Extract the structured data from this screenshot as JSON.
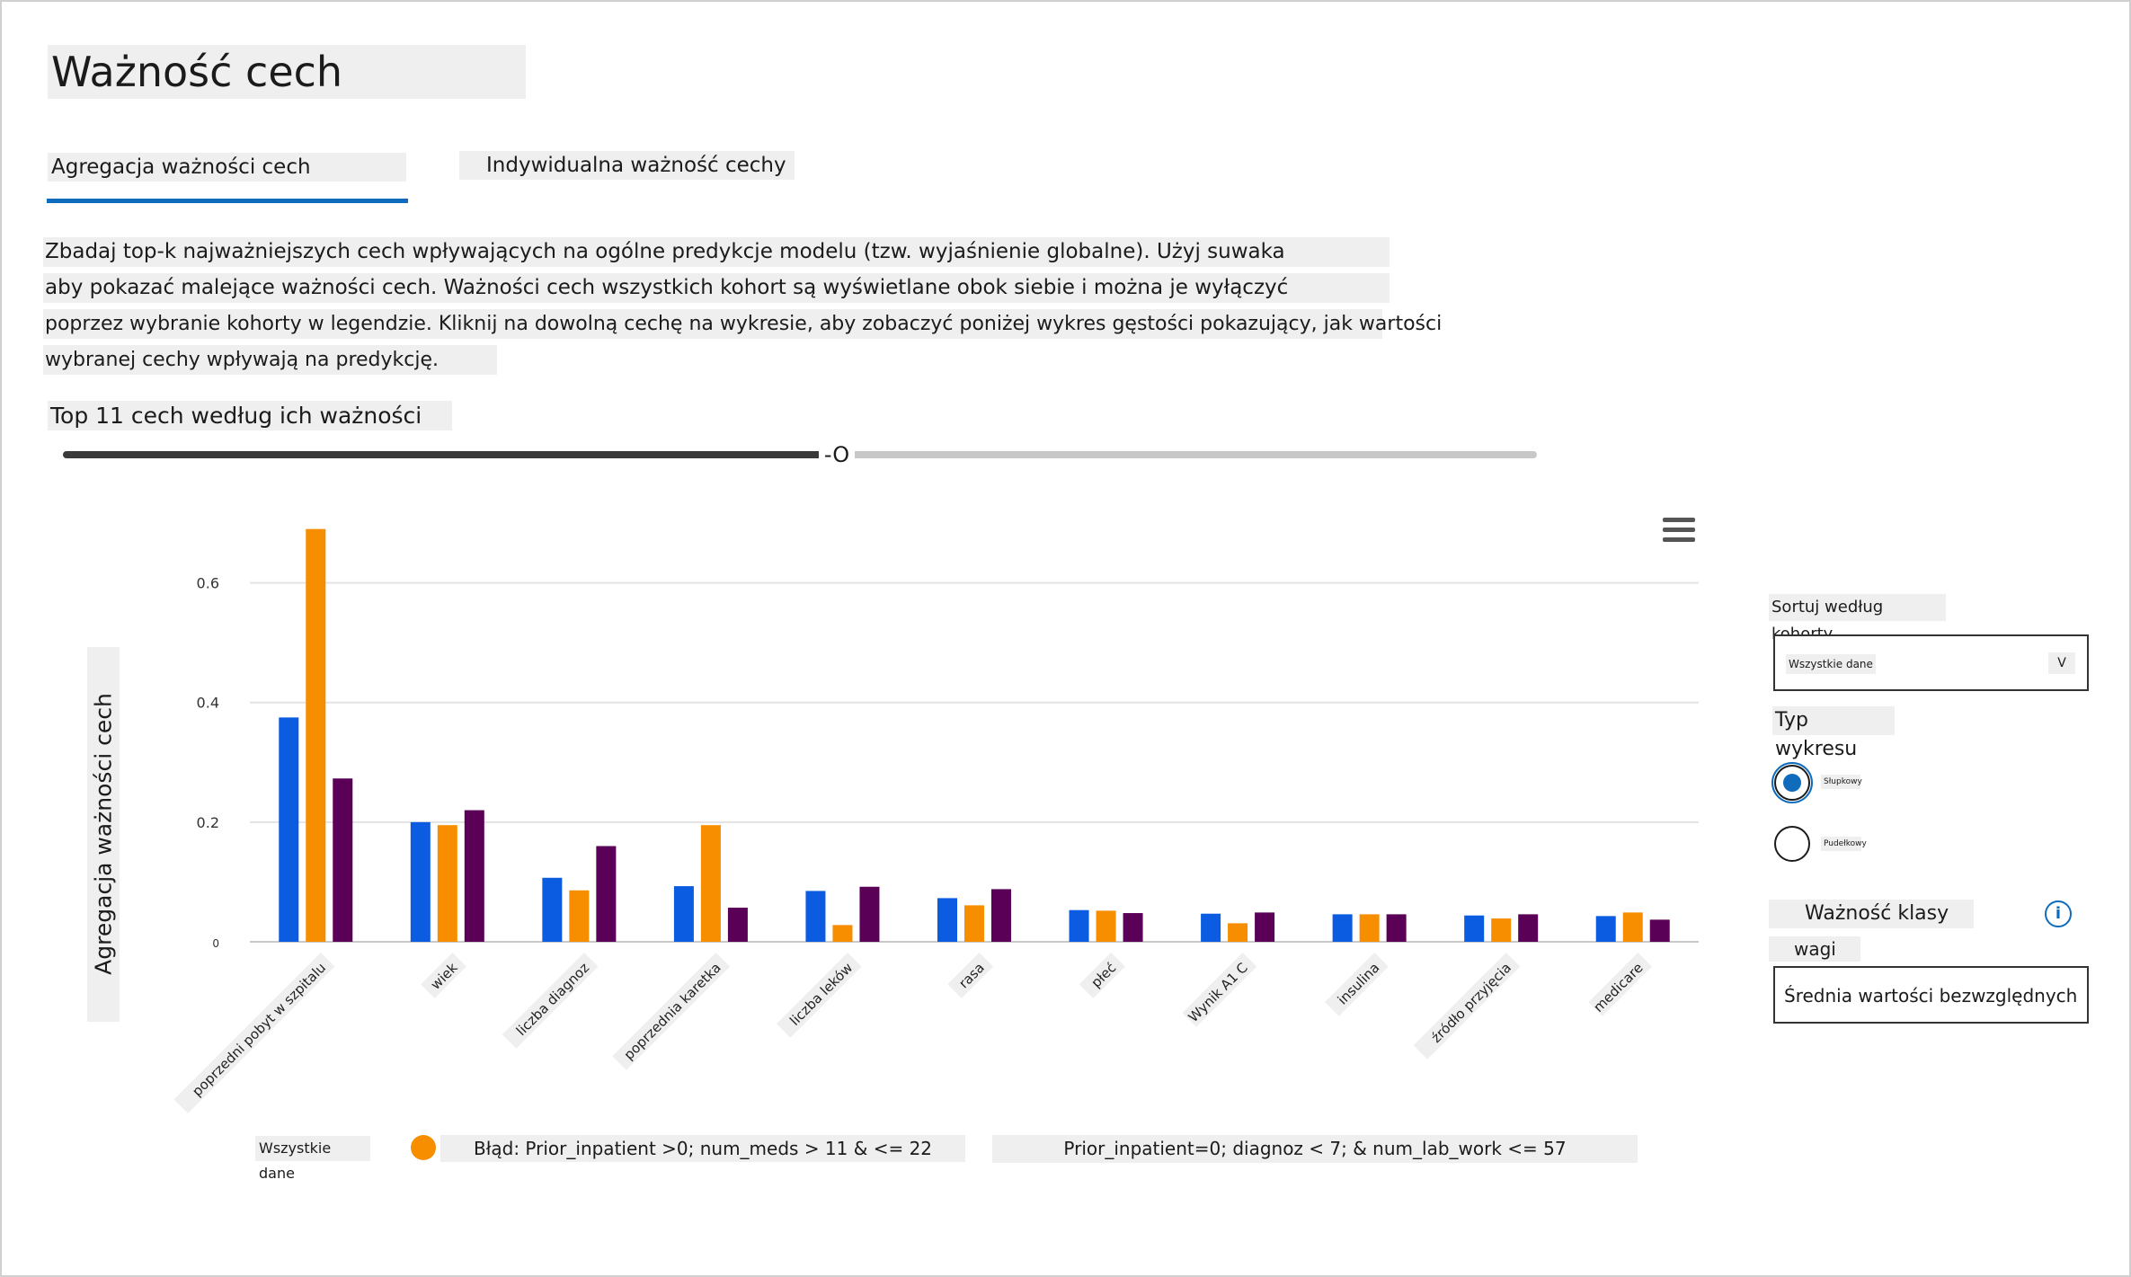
{
  "page": {
    "title": "Ważność cech"
  },
  "tabs": [
    {
      "label": "Agregacja ważności cech",
      "active": true
    },
    {
      "label": "Indywidualna ważność cechy",
      "active": false
    }
  ],
  "description": {
    "lines": [
      "Zbadaj top-k najważniejszych cech wpływających na ogólne predykcje modelu (tzw. wyjaśnienie globalne). Użyj suwaka",
      "aby pokazać malejące ważności cech. Ważności cech wszystkich kohort są wyświetlane obok siebie i można je wyłączyć",
      "poprzez wybranie kohorty w legendzie. Kliknij na dowolną cechę na wykresie, aby zobaczyć poniżej wykres gęstości pokazujący, jak wartości",
      "wybranej cechy wpływają na predykcję."
    ]
  },
  "slider": {
    "label": "Top 11 cech według ich ważności",
    "thumb_label": "-O",
    "value_fraction": 0.52
  },
  "chart_data": {
    "type": "bar",
    "ylabel": "Agregacja ważności cech",
    "ylim": [
      0,
      0.7
    ],
    "yticks": [
      0,
      0.2,
      0.4,
      0.6
    ],
    "ytick_labels": [
      "0",
      "0.2",
      "0.4",
      "0.6"
    ],
    "grid": true,
    "categories": [
      "poprzedni pobyt w szpitalu",
      "wiek",
      "liczba diagnoz",
      "poprzednia karetka",
      "liczba leków",
      "rasa",
      "płeć",
      "Wynik A1 C",
      "insulina",
      "źródło przyjęcia",
      "medicare"
    ],
    "tick_labels": [
      "poprzedni pobyt w szpitalu",
      "wiek",
      "liczba diagnoz",
      "poprzednia karetka",
      "liczba leków",
      "rasa",
      "płeć",
      "Wynik A1 C",
      "insulina",
      "źródło przyjęcia",
      "medicare"
    ],
    "series": [
      {
        "name": "Wszystkie dane",
        "color": "#0b5ce1",
        "values": [
          0.375,
          0.2,
          0.107,
          0.093,
          0.085,
          0.073,
          0.053,
          0.047,
          0.046,
          0.044,
          0.043
        ]
      },
      {
        "name": "Błąd: Prior_inpatient >0; num_meds > 11 & <= 22",
        "color": "#f68e00",
        "values": [
          0.69,
          0.195,
          0.086,
          0.195,
          0.028,
          0.061,
          0.052,
          0.031,
          0.046,
          0.039,
          0.049
        ]
      },
      {
        "name": "Prior_inpatient=0; diagnoz < 7; & num_lab_work <= 57",
        "color": "#5a0057",
        "values": [
          0.273,
          0.22,
          0.16,
          0.057,
          0.092,
          0.088,
          0.048,
          0.049,
          0.046,
          0.046,
          0.037
        ]
      }
    ],
    "legend_position": "bottom"
  },
  "legend": {
    "item1": "Wszystkie dane",
    "item2": "Błąd: Prior_inpatient >0; num_meds > 11 & <= 22",
    "item3": "Prior_inpatient=0; diagnoz < 7; & num_lab_work <= 57"
  },
  "side_panel": {
    "sort_label": "Sortuj według kohorty",
    "sort_value": "Wszystkie dane",
    "chevron": "V",
    "chart_type_label": "Typ wykresu",
    "chart_type_options": [
      {
        "label": "Słupkowy",
        "selected": true
      },
      {
        "label": "Pudełkowy",
        "selected": false
      }
    ],
    "class_importance_label": "Ważność klasy",
    "info_icon_glyph": "i",
    "weights_label": "wagi",
    "weights_value": "Średnia wartości bezwzględnych ... V"
  },
  "colors": {
    "accent": "#0f6cbd",
    "series1": "#0b5ce1",
    "series2": "#f68e00",
    "series3": "#5a0057"
  }
}
